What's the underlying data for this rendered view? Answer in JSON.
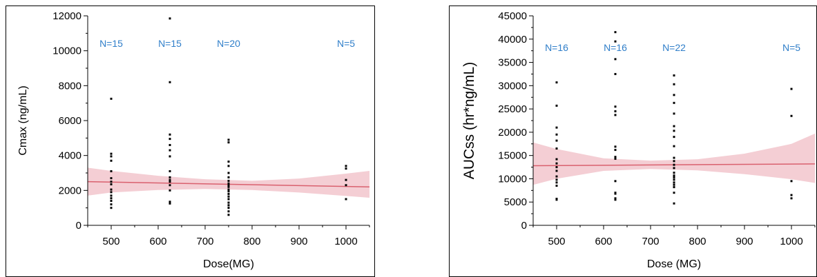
{
  "chart_data": [
    {
      "type": "scatter",
      "xlabel": "Dose(MG)",
      "ylabel": "Cmax (ng/mL)",
      "xlim": [
        450,
        1050
      ],
      "ylim": [
        0,
        12000
      ],
      "xticks": [
        500,
        600,
        700,
        800,
        900,
        1000
      ],
      "xtick_labels": [
        "500",
        "600",
        "700",
        "800",
        "900",
        "1000"
      ],
      "yticks": [
        0,
        2000,
        4000,
        6000,
        8000,
        10000,
        12000
      ],
      "ytick_labels": [
        "0",
        "2000",
        "4000",
        "6000",
        "8000",
        "10000",
        "12000"
      ],
      "annotations": [
        {
          "text": "N=15",
          "x": 500
        },
        {
          "text": "N=15",
          "x": 625
        },
        {
          "text": "N=20",
          "x": 750
        },
        {
          "text": "N=5",
          "x": 1000
        }
      ],
      "points": [
        {
          "x": 500,
          "y": 7250
        },
        {
          "x": 500,
          "y": 4100
        },
        {
          "x": 500,
          "y": 3950
        },
        {
          "x": 500,
          "y": 3700
        },
        {
          "x": 500,
          "y": 3100
        },
        {
          "x": 500,
          "y": 2700
        },
        {
          "x": 500,
          "y": 2500
        },
        {
          "x": 500,
          "y": 2350
        },
        {
          "x": 500,
          "y": 2050
        },
        {
          "x": 500,
          "y": 1900
        },
        {
          "x": 500,
          "y": 1700
        },
        {
          "x": 500,
          "y": 1550
        },
        {
          "x": 500,
          "y": 1400
        },
        {
          "x": 500,
          "y": 1200
        },
        {
          "x": 500,
          "y": 1000
        },
        {
          "x": 625,
          "y": 11850
        },
        {
          "x": 625,
          "y": 8200
        },
        {
          "x": 625,
          "y": 5200
        },
        {
          "x": 625,
          "y": 4950
        },
        {
          "x": 625,
          "y": 4600
        },
        {
          "x": 625,
          "y": 4300
        },
        {
          "x": 625,
          "y": 3950
        },
        {
          "x": 625,
          "y": 3100
        },
        {
          "x": 625,
          "y": 2750
        },
        {
          "x": 625,
          "y": 2600
        },
        {
          "x": 625,
          "y": 2500
        },
        {
          "x": 625,
          "y": 2300
        },
        {
          "x": 625,
          "y": 2000
        },
        {
          "x": 625,
          "y": 1350
        },
        {
          "x": 625,
          "y": 1250
        },
        {
          "x": 750,
          "y": 4900
        },
        {
          "x": 750,
          "y": 4750
        },
        {
          "x": 750,
          "y": 3650
        },
        {
          "x": 750,
          "y": 3400
        },
        {
          "x": 750,
          "y": 3000
        },
        {
          "x": 750,
          "y": 2750
        },
        {
          "x": 750,
          "y": 2550
        },
        {
          "x": 750,
          "y": 2400
        },
        {
          "x": 750,
          "y": 2300
        },
        {
          "x": 750,
          "y": 2200
        },
        {
          "x": 750,
          "y": 2050
        },
        {
          "x": 750,
          "y": 1950
        },
        {
          "x": 750,
          "y": 1800
        },
        {
          "x": 750,
          "y": 1650
        },
        {
          "x": 750,
          "y": 1500
        },
        {
          "x": 750,
          "y": 1300
        },
        {
          "x": 750,
          "y": 1150
        },
        {
          "x": 750,
          "y": 1000
        },
        {
          "x": 750,
          "y": 800
        },
        {
          "x": 750,
          "y": 600
        },
        {
          "x": 1000,
          "y": 3400
        },
        {
          "x": 1000,
          "y": 3250
        },
        {
          "x": 1000,
          "y": 2600
        },
        {
          "x": 1000,
          "y": 2300
        },
        {
          "x": 1000,
          "y": 1500
        }
      ],
      "trend": {
        "x": [
          450,
          1050
        ],
        "y": [
          2500,
          2200
        ]
      },
      "band": {
        "x": [
          450,
          500,
          600,
          700,
          800,
          900,
          1000,
          1050
        ],
        "lower": [
          1700,
          1880,
          2020,
          2080,
          2020,
          1880,
          1680,
          1580
        ],
        "upper": [
          3300,
          3120,
          2840,
          2640,
          2550,
          2680,
          2960,
          3120
        ]
      },
      "colors": {
        "points": "#000000",
        "trend": "#d9606e",
        "band": "#f2c6cd",
        "annotation": "#2f7ec9"
      }
    },
    {
      "type": "scatter",
      "xlabel": "Dose (MG)",
      "ylabel": "AUCss (hr*ng/mL)",
      "xlim": [
        450,
        1050
      ],
      "ylim": [
        0,
        45000
      ],
      "xticks": [
        500,
        600,
        700,
        800,
        900,
        1000
      ],
      "xtick_labels": [
        "500",
        "600",
        "700",
        "800",
        "900",
        "1000"
      ],
      "yticks": [
        0,
        5000,
        10000,
        15000,
        20000,
        25000,
        30000,
        35000,
        40000,
        45000
      ],
      "ytick_labels": [
        "0",
        "5000",
        "10000",
        "15000",
        "20000",
        "25000",
        "30000",
        "35000",
        "40000",
        "45000"
      ],
      "annotations": [
        {
          "text": "N=16",
          "x": 500
        },
        {
          "text": "N=16",
          "x": 625
        },
        {
          "text": "N=22",
          "x": 750
        },
        {
          "text": "N=5",
          "x": 1000
        }
      ],
      "points": [
        {
          "x": 500,
          "y": 30700
        },
        {
          "x": 500,
          "y": 25700
        },
        {
          "x": 500,
          "y": 21000
        },
        {
          "x": 500,
          "y": 19500
        },
        {
          "x": 500,
          "y": 18200
        },
        {
          "x": 500,
          "y": 16500
        },
        {
          "x": 500,
          "y": 14200
        },
        {
          "x": 500,
          "y": 13300
        },
        {
          "x": 500,
          "y": 12500
        },
        {
          "x": 500,
          "y": 11700
        },
        {
          "x": 500,
          "y": 10500
        },
        {
          "x": 500,
          "y": 9800
        },
        {
          "x": 500,
          "y": 9200
        },
        {
          "x": 500,
          "y": 8500
        },
        {
          "x": 500,
          "y": 5700
        },
        {
          "x": 500,
          "y": 5500
        },
        {
          "x": 625,
          "y": 41500
        },
        {
          "x": 625,
          "y": 39500
        },
        {
          "x": 625,
          "y": 35700
        },
        {
          "x": 625,
          "y": 32500
        },
        {
          "x": 625,
          "y": 25500
        },
        {
          "x": 625,
          "y": 24500
        },
        {
          "x": 625,
          "y": 23700
        },
        {
          "x": 625,
          "y": 16900
        },
        {
          "x": 625,
          "y": 16200
        },
        {
          "x": 625,
          "y": 14700
        },
        {
          "x": 625,
          "y": 14300
        },
        {
          "x": 625,
          "y": 9500
        },
        {
          "x": 625,
          "y": 7000
        },
        {
          "x": 625,
          "y": 6800
        },
        {
          "x": 625,
          "y": 5800
        },
        {
          "x": 625,
          "y": 5500
        },
        {
          "x": 750,
          "y": 32200
        },
        {
          "x": 750,
          "y": 30300
        },
        {
          "x": 750,
          "y": 28000
        },
        {
          "x": 750,
          "y": 26300
        },
        {
          "x": 750,
          "y": 24000
        },
        {
          "x": 750,
          "y": 21300
        },
        {
          "x": 750,
          "y": 20300
        },
        {
          "x": 750,
          "y": 19000
        },
        {
          "x": 750,
          "y": 17000
        },
        {
          "x": 750,
          "y": 14500
        },
        {
          "x": 750,
          "y": 13800
        },
        {
          "x": 750,
          "y": 13000
        },
        {
          "x": 750,
          "y": 12300
        },
        {
          "x": 750,
          "y": 11300
        },
        {
          "x": 750,
          "y": 10700
        },
        {
          "x": 750,
          "y": 10300
        },
        {
          "x": 750,
          "y": 9800
        },
        {
          "x": 750,
          "y": 9200
        },
        {
          "x": 750,
          "y": 8700
        },
        {
          "x": 750,
          "y": 8200
        },
        {
          "x": 750,
          "y": 7000
        },
        {
          "x": 750,
          "y": 4700
        },
        {
          "x": 1000,
          "y": 29300
        },
        {
          "x": 1000,
          "y": 23500
        },
        {
          "x": 1000,
          "y": 9500
        },
        {
          "x": 1000,
          "y": 6500
        },
        {
          "x": 1000,
          "y": 5800
        }
      ],
      "trend": {
        "x": [
          450,
          1050
        ],
        "y": [
          12800,
          13200
        ]
      },
      "band": {
        "x": [
          450,
          500,
          600,
          700,
          800,
          900,
          1000,
          1050
        ],
        "lower": [
          8700,
          10000,
          11700,
          12100,
          11800,
          11000,
          9900,
          9100
        ],
        "upper": [
          17800,
          16400,
          14400,
          13900,
          14200,
          15400,
          17500,
          19700
        ]
      },
      "colors": {
        "points": "#000000",
        "trend": "#d9606e",
        "band": "#f2c6cd",
        "annotation": "#2f7ec9"
      }
    }
  ]
}
